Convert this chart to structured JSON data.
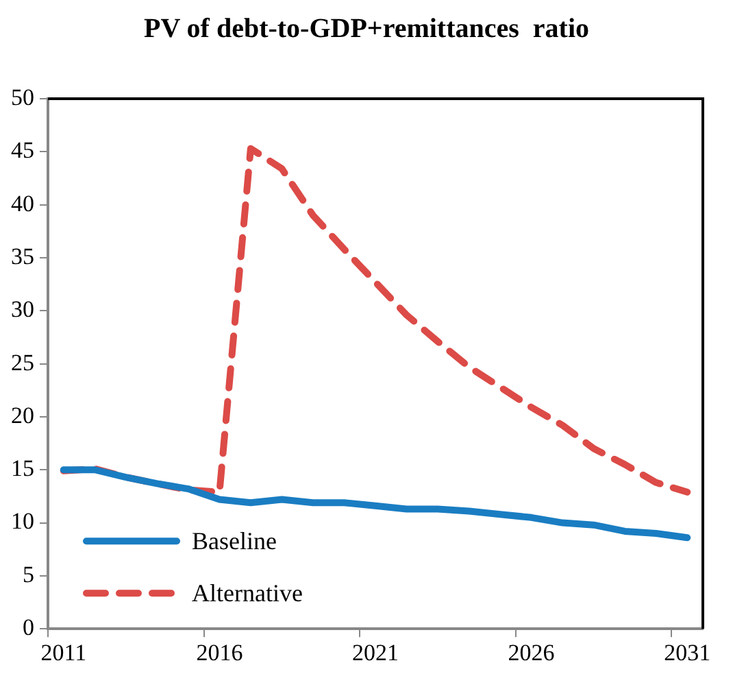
{
  "chart_data": {
    "type": "line",
    "title": "PV of debt-to-GDP+remittances  ratio",
    "categories": [
      "2011",
      null,
      null,
      null,
      null,
      "2016",
      null,
      null,
      null,
      null,
      "2021",
      null,
      null,
      null,
      null,
      "2026",
      null,
      null,
      null,
      null,
      "2031"
    ],
    "series": [
      {
        "name": "Baseline",
        "color": "#1a7dc2",
        "line_style": "solid",
        "values": [
          15.0,
          15.0,
          14.3,
          13.7,
          13.2,
          12.2,
          11.9,
          12.2,
          11.9,
          11.9,
          11.6,
          11.3,
          11.3,
          11.1,
          10.8,
          10.5,
          10.0,
          9.8,
          9.2,
          9.0,
          8.6
        ]
      },
      {
        "name": "Alternative",
        "color": "#dc4b47",
        "line_style": "dashed",
        "values": [
          14.9,
          15.1,
          14.3,
          13.7,
          13.1,
          12.9,
          45.3,
          43.4,
          39.0,
          35.8,
          32.7,
          29.6,
          27.1,
          24.7,
          22.8,
          20.9,
          19.2,
          17.0,
          15.5,
          13.8,
          12.9
        ]
      }
    ],
    "ylim": [
      0,
      50
    ],
    "yticks": [
      0,
      5,
      10,
      15,
      20,
      25,
      30,
      35,
      40,
      45,
      50
    ],
    "grid": false,
    "legend": "bottom left",
    "marker": "none"
  }
}
